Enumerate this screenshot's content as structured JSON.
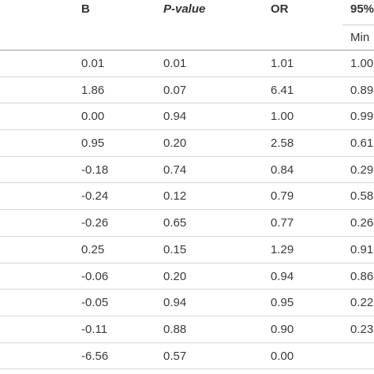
{
  "header": {
    "col_b": "B",
    "col_pvalue": "P-value",
    "col_or": "OR",
    "col_ci": "95%",
    "col_ci_min": "Min"
  },
  "rows": [
    {
      "b": "0.01",
      "p": "0.01",
      "or": "1.01",
      "min": "1.00"
    },
    {
      "b": "1.86",
      "p": "0.07",
      "or": "6.41",
      "min": "0.89"
    },
    {
      "b": "0.00",
      "p": "0.94",
      "or": "1.00",
      "min": "0.99"
    },
    {
      "b": "0.95",
      "p": "0.20",
      "or": "2.58",
      "min": "0.61"
    },
    {
      "b": "-0.18",
      "p": "0.74",
      "or": "0.84",
      "min": "0.29"
    },
    {
      "b": "-0.24",
      "p": "0.12",
      "or": "0.79",
      "min": "0.58"
    },
    {
      "b": "-0.26",
      "p": "0.65",
      "or": "0.77",
      "min": "0.26"
    },
    {
      "b": "0.25",
      "p": "0.15",
      "or": "1.29",
      "min": "0.91"
    },
    {
      "b": "-0.06",
      "p": "0.20",
      "or": "0.94",
      "min": "0.86"
    },
    {
      "b": "-0.05",
      "p": "0.94",
      "or": "0.95",
      "min": "0.22"
    },
    {
      "b": "-0.11",
      "p": "0.88",
      "or": "0.90",
      "min": "0.23"
    },
    {
      "b": "-6.56",
      "p": "0.57",
      "or": "0.00",
      "min": ""
    }
  ]
}
